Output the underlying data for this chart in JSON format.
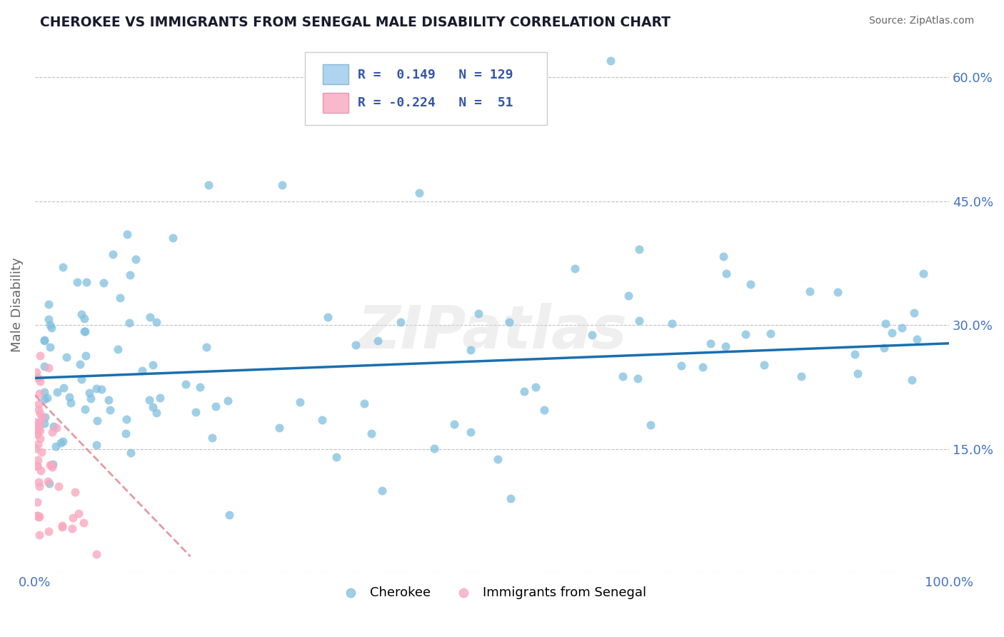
{
  "title": "CHEROKEE VS IMMIGRANTS FROM SENEGAL MALE DISABILITY CORRELATION CHART",
  "source": "Source: ZipAtlas.com",
  "ylabel": "Male Disability",
  "xlim": [
    0,
    1.0
  ],
  "ylim": [
    0,
    0.65
  ],
  "yticks": [
    0.0,
    0.15,
    0.3,
    0.45,
    0.6
  ],
  "ytick_labels_right": [
    "",
    "15.0%",
    "30.0%",
    "45.0%",
    "60.0%"
  ],
  "xtick_labels": [
    "0.0%",
    "100.0%"
  ],
  "legend_R1": "0.149",
  "legend_N1": "129",
  "legend_R2": "-0.224",
  "legend_N2": "51",
  "cherokee_color": "#7fbfdf",
  "senegal_color": "#f9a8c0",
  "cherokee_line_color": "#1a6faf",
  "senegal_line_color": "#e08090",
  "background_color": "#ffffff",
  "grid_color": "#bbbbbb",
  "watermark": "ZIPatlas",
  "title_color": "#1a1a2e",
  "axis_label_color": "#4472c4",
  "cherokee_trend_x": [
    0.0,
    1.0
  ],
  "cherokee_trend_y": [
    0.236,
    0.278
  ],
  "senegal_trend_x": [
    0.0,
    0.17
  ],
  "senegal_trend_y": [
    0.215,
    0.02
  ],
  "legend_color": "#3355aa"
}
